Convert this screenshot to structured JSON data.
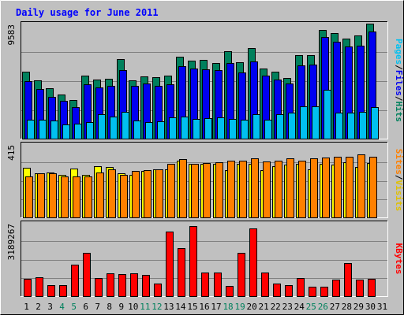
{
  "chart_data": {
    "type": "bar",
    "title": "Daily usage for June 2011",
    "categories": [
      "1",
      "2",
      "3",
      "4",
      "5",
      "6",
      "7",
      "8",
      "9",
      "10",
      "11",
      "12",
      "13",
      "14",
      "15",
      "16",
      "17",
      "18",
      "19",
      "20",
      "21",
      "22",
      "23",
      "24",
      "25",
      "26",
      "27",
      "28",
      "29",
      "30",
      "31"
    ],
    "weekend_days": [
      "4",
      "5",
      "11",
      "12",
      "18",
      "19",
      "25",
      "26"
    ],
    "panels": [
      {
        "id": "hits_files_pages",
        "ylabel": [
          "Pages",
          "/",
          "Files",
          "/",
          "Hits"
        ],
        "ymax_label": "9583",
        "ylim": [
          0,
          9583
        ],
        "grid": true,
        "series": [
          {
            "name": "Hits",
            "color": "#00805c",
            "values": [
              5540,
              4850,
              4190,
              3700,
              3260,
              5220,
              4910,
              4990,
              6630,
              4870,
              5190,
              5130,
              5260,
              6780,
              6450,
              6550,
              6280,
              7220,
              6360,
              7480,
              5820,
              5590,
              5020,
              6900,
              6950,
              9030,
              8770,
              8300,
              8560,
              9520,
              0
            ]
          },
          {
            "name": "Files",
            "color": "#0000f0",
            "values": [
              4790,
              4120,
              3500,
              3160,
              2630,
              4530,
              4280,
              4390,
              5680,
              4390,
              4620,
              4420,
              4530,
              6040,
              5800,
              5770,
              5720,
              6290,
              5500,
              6390,
              5250,
              4940,
              4590,
              6060,
              6140,
              8410,
              8020,
              7650,
              7700,
              8900,
              0
            ]
          },
          {
            "name": "Pages",
            "color": "#00c0f0",
            "values": [
              1590,
              1590,
              1560,
              1240,
              1310,
              1410,
              2040,
              1850,
              2290,
              1570,
              1440,
              1470,
              1800,
              1870,
              1660,
              1730,
              1790,
              1680,
              1600,
              2050,
              1590,
              2100,
              2200,
              2730,
              2730,
              4100,
              2170,
              2170,
              2280,
              2660,
              0
            ]
          }
        ]
      },
      {
        "id": "visits_sites",
        "ylabel": [
          "Sites",
          "/",
          "Visits"
        ],
        "ymax_label": "415",
        "ylim": [
          0,
          415
        ],
        "grid": true,
        "series": [
          {
            "name": "Visits",
            "color": "#ffff00",
            "values": [
              280,
              250,
              255,
              240,
              275,
              240,
              290,
              285,
              250,
              240,
              260,
              270,
              270,
              320,
              300,
              300,
              300,
              265,
              300,
              300,
              265,
              290,
              295,
              300,
              270,
              300,
              295,
              310,
              285,
              305,
              0
            ]
          },
          {
            "name": "Sites",
            "color": "#ff8000",
            "values": [
              230,
              250,
              250,
              230,
              230,
              230,
              255,
              270,
              240,
              260,
              265,
              272,
              300,
              328,
              300,
              305,
              310,
              320,
              320,
              330,
              315,
              320,
              330,
              320,
              330,
              335,
              340,
              340,
              355,
              340,
              0
            ]
          }
        ]
      },
      {
        "id": "kbytes",
        "ylabel": [
          "KBytes"
        ],
        "ymax_label": "3189267",
        "ylim": [
          0,
          3189267
        ],
        "grid": true,
        "series": [
          {
            "name": "KBytes",
            "color": "#ff0000",
            "values": [
              780000,
              850000,
              490000,
              500000,
              1360000,
              1870000,
              790000,
              1020000,
              970000,
              1020000,
              940000,
              580000,
              2790000,
              2090000,
              3020000,
              1040000,
              1040000,
              480000,
              1890000,
              2930000,
              1030000,
              570000,
              510000,
              820000,
              420000,
              440000,
              750000,
              1440000,
              750000,
              760000,
              0
            ]
          }
        ]
      }
    ]
  }
}
